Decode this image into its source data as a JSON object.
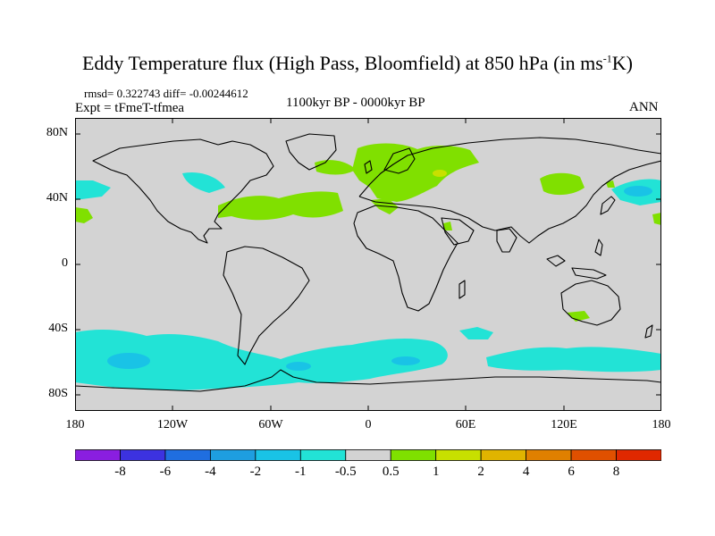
{
  "title": "Eddy Temperature flux (High Pass, Bloomfield) at 850 hPa (in ms",
  "title_sup": "-1",
  "title_end": "K)",
  "stats": "rmsd= 0.322743 diff= -0.00244612",
  "expt": "Expt = tFmeT-tfmea",
  "period": "1100kyr BP - 0000kyr BP",
  "season": "ANN",
  "map": {
    "projection": "cylindrical equidistant",
    "background_color": "#d3d3d3",
    "lat_range": [
      -90,
      90
    ],
    "lon_range": [
      -180,
      180
    ],
    "y_ticks": [
      "80N",
      "40N",
      "0",
      "40S",
      "80S"
    ],
    "x_ticks": [
      "180",
      "120W",
      "60W",
      "0",
      "60E",
      "120E",
      "180"
    ]
  },
  "colorbar": {
    "labels": [
      "-8",
      "-6",
      "-4",
      "-2",
      "-1",
      "-0.5",
      "0.5",
      "1",
      "2",
      "4",
      "6",
      "8"
    ],
    "colors": [
      "#8a1ee0",
      "#3c32e0",
      "#1f6ee0",
      "#1e9ee0",
      "#19c3e6",
      "#22e3d6",
      "#d3d3d3",
      "#7fe000",
      "#c8e000",
      "#e0b400",
      "#e08000",
      "#e05000",
      "#e02800"
    ]
  }
}
